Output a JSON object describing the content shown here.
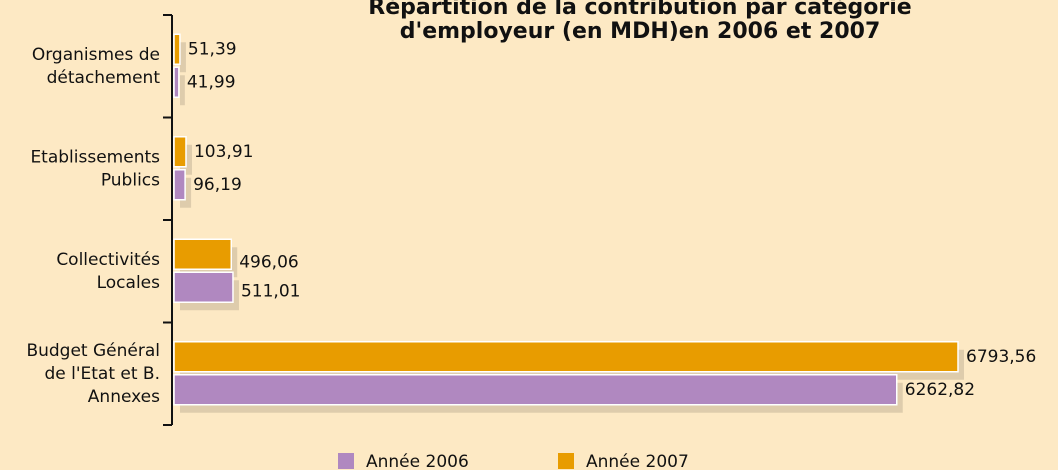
{
  "chart_data": {
    "type": "bar",
    "title": [
      "Répartition de la contribution par catégorie",
      "d'employeur (en MDH)en 2006 et 2007"
    ],
    "categories": [
      [
        "Organismes de",
        "détachement"
      ],
      [
        "Etablissements",
        "Publics"
      ],
      [
        "Collectivités",
        "Locales"
      ],
      [
        "Budget Général",
        "de l'Etat et B.",
        "Annexes"
      ]
    ],
    "series": [
      {
        "name": "Année 2007",
        "color": "#e89c00",
        "values": [
          51.39,
          103.91,
          496.06,
          6793.56
        ],
        "value_labels": [
          "51,39",
          "103,91",
          "496,06",
          "6793,56"
        ]
      },
      {
        "name": "Année 2006",
        "color": "#b088c0",
        "values": [
          41.99,
          96.19,
          511.01,
          6262.82
        ],
        "value_labels": [
          "41,99",
          "96,19",
          "511,01",
          "6262,82"
        ]
      }
    ],
    "legend_order": [
      1,
      0
    ],
    "xlim": [
      0,
      6800
    ]
  }
}
